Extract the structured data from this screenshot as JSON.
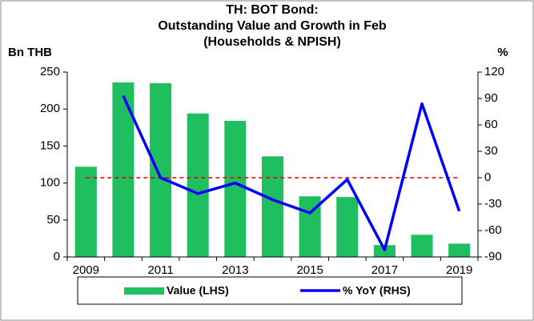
{
  "chart_data": {
    "type": "bar",
    "title": [
      "TH: BOT Bond:",
      "Outstanding Value and Growth in Feb",
      "(Households & NPISH)"
    ],
    "y_label": "Bn THB",
    "y2_label": "%",
    "categories": [
      "2009",
      null,
      "2011",
      null,
      "2013",
      null,
      "2015",
      null,
      "2017",
      null,
      "2019"
    ],
    "series": [
      {
        "name": "Value (LHS)",
        "type": "bar",
        "color": "#1fbf5f",
        "values": [
          122,
          236,
          235,
          194,
          184,
          136,
          82,
          81,
          16,
          30,
          18
        ]
      },
      {
        "name": "% YoY (RHS)",
        "type": "line",
        "axis": "y2",
        "color": "#0000ff",
        "values": [
          null,
          93,
          0,
          -18,
          -6,
          -25,
          -40,
          -2,
          -82,
          84,
          -38
        ]
      }
    ],
    "reference_line": {
      "value": 0,
      "axis": "y2",
      "color": "#e00000"
    },
    "ylim": [
      0,
      250
    ],
    "yticks": [
      0,
      50,
      100,
      150,
      200,
      250
    ],
    "y2lim": [
      -90,
      120
    ],
    "y2ticks": [
      -90,
      -60,
      -30,
      0,
      30,
      60,
      90,
      120
    ],
    "grid": false,
    "legend": "bottom"
  }
}
